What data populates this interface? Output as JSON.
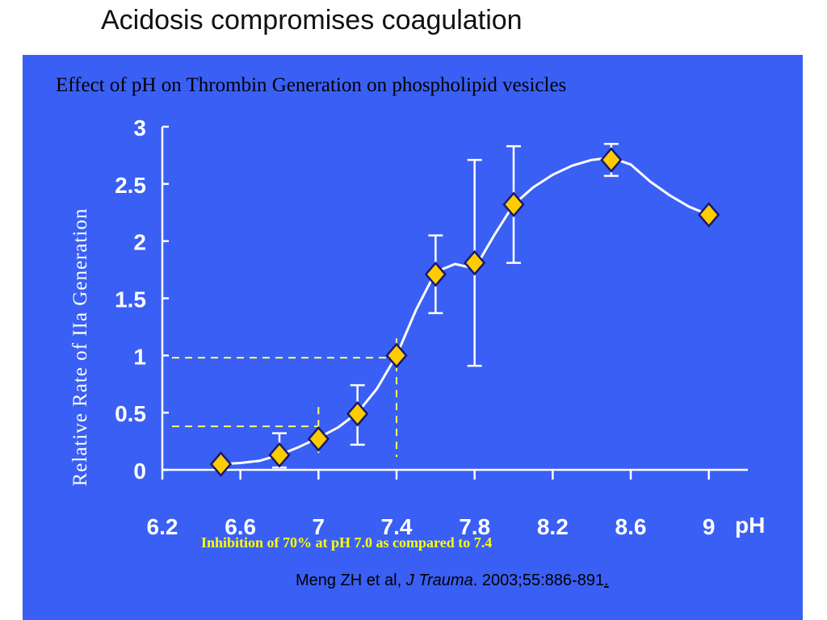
{
  "slide": {
    "title": "Acidosis compromises coagulation"
  },
  "chart_data": {
    "type": "line",
    "title": "Effect of pH on Thrombin Generation on phospholipid vesicles",
    "xlabel": "pH",
    "ylabel": "Relative Rate of IIa Generation",
    "x_ticks": [
      "6.2",
      "6.6",
      "7",
      "7.4",
      "7.8",
      "8.2",
      "8.6",
      "9"
    ],
    "y_ticks": [
      "0",
      "0.5",
      "1",
      "1.5",
      "2",
      "2.5",
      "3"
    ],
    "xlim": [
      6.2,
      9.2
    ],
    "ylim": [
      0,
      3
    ],
    "grid": false,
    "series": [
      {
        "x": [
          6.5,
          6.8,
          7.0,
          7.2,
          7.4,
          7.6,
          7.8,
          8.0,
          8.5,
          9.0
        ],
        "y": [
          0.05,
          0.13,
          0.27,
          0.49,
          1.0,
          1.71,
          1.81,
          2.32,
          2.71,
          2.23
        ],
        "err_low": [
          null,
          0.11,
          null,
          0.27,
          null,
          0.34,
          0.9,
          0.51,
          0.14,
          null
        ],
        "err_high": [
          null,
          0.19,
          null,
          0.25,
          null,
          0.34,
          0.9,
          0.51,
          0.14,
          null
        ]
      }
    ],
    "curve": {
      "x": [
        6.5,
        6.6,
        6.7,
        6.8,
        6.9,
        7.0,
        7.1,
        7.2,
        7.3,
        7.4,
        7.5,
        7.6,
        7.7,
        7.8,
        7.9,
        8.0,
        8.1,
        8.2,
        8.3,
        8.4,
        8.5,
        8.6,
        8.7,
        8.8,
        8.9,
        9.0
      ],
      "y": [
        0.05,
        0.06,
        0.08,
        0.13,
        0.2,
        0.28,
        0.37,
        0.5,
        0.71,
        1.0,
        1.4,
        1.73,
        1.8,
        1.76,
        2.05,
        2.32,
        2.47,
        2.58,
        2.66,
        2.71,
        2.73,
        2.67,
        2.52,
        2.4,
        2.3,
        2.23
      ]
    },
    "reference_lines": [
      {
        "x": 7.0,
        "y": 0.38
      },
      {
        "x": 7.4,
        "y": 0.98
      }
    ],
    "annotation": "Inhibition of  70% at pH 7.0 as compared to 7.4",
    "colors": {
      "background": "#3a5ff5",
      "line": "#ffffff",
      "marker_fill": "#ffcc00",
      "marker_stroke": "#1a1a6e",
      "reference": "#ffff66",
      "annotation": "#ffff00",
      "title": "#000000"
    }
  },
  "citation": {
    "authors": "Meng ZH et al, ",
    "journal": "J Trauma",
    "details": ". 2003;55:886-891",
    "end": "."
  }
}
